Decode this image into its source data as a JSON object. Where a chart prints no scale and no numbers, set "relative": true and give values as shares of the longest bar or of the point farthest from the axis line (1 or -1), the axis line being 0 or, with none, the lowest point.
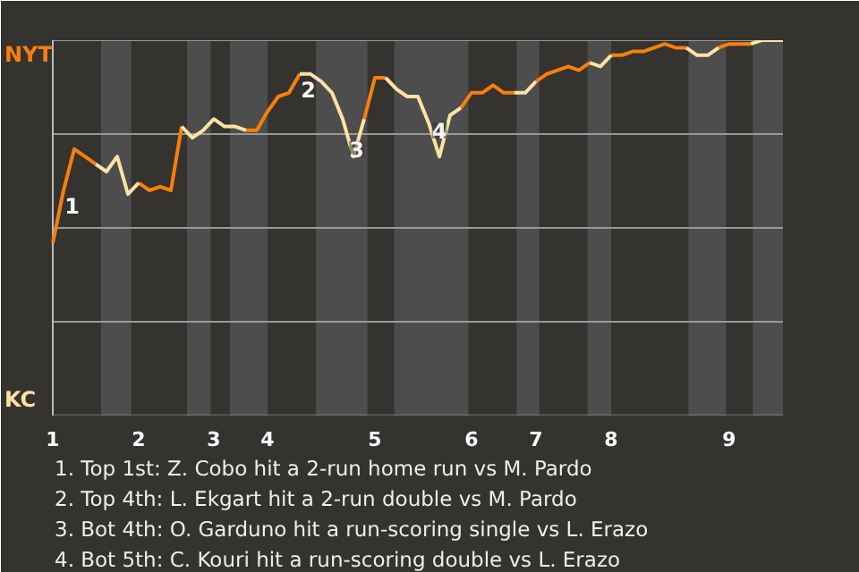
{
  "chart_data": {
    "type": "line",
    "relative": true,
    "categories": [
      "1",
      null,
      null,
      null,
      null,
      null,
      null,
      null,
      "2",
      null,
      null,
      null,
      null,
      null,
      null,
      "3",
      null,
      null,
      null,
      null,
      "4",
      null,
      null,
      null,
      null,
      null,
      null,
      null,
      null,
      null,
      "5",
      null,
      null,
      null,
      null,
      null,
      null,
      null,
      null,
      "6",
      null,
      null,
      null,
      null,
      null,
      "7",
      null,
      null,
      null,
      null,
      null,
      null,
      "8",
      null,
      null,
      null,
      null,
      null,
      null,
      null,
      null,
      null,
      null,
      "9",
      null,
      null,
      null,
      null,
      null
    ],
    "series": [
      {
        "color": "#f97f0a",
        "values": [
          0.46,
          0.6,
          0.71,
          0.69,
          0.67,
          null,
          null,
          null,
          0.62,
          0.6,
          0.61,
          0.6,
          0.77,
          null,
          null,
          null,
          null,
          null,
          0.76,
          0.76,
          0.81,
          0.85,
          0.86,
          0.91,
          null,
          null,
          null,
          null,
          null,
          0.79,
          0.9,
          0.9,
          null,
          null,
          null,
          null,
          null,
          null,
          0.82,
          0.86,
          0.86,
          0.88,
          0.86,
          0.86,
          null,
          0.89,
          0.91,
          0.92,
          0.93,
          0.92,
          0.94,
          null,
          0.96,
          0.96,
          0.97,
          0.97,
          0.98,
          0.99,
          0.98,
          0.98,
          null,
          null,
          0.98,
          0.99,
          0.99,
          0.99,
          null,
          null,
          null
        ]
      },
      {
        "color": "#fde2a4",
        "values": [
          null,
          null,
          null,
          null,
          0.67,
          0.65,
          0.69,
          0.59,
          0.62,
          null,
          null,
          null,
          0.77,
          0.74,
          0.76,
          0.79,
          0.77,
          0.77,
          0.76,
          null,
          null,
          null,
          null,
          0.91,
          0.91,
          0.89,
          0.86,
          0.79,
          0.69,
          0.79,
          null,
          0.9,
          0.87,
          0.85,
          0.85,
          0.78,
          0.69,
          0.8,
          0.82,
          null,
          null,
          null,
          null,
          0.86,
          0.86,
          0.89,
          null,
          null,
          null,
          null,
          0.94,
          0.93,
          0.96,
          null,
          null,
          null,
          null,
          null,
          null,
          0.98,
          0.96,
          0.96,
          0.98,
          null,
          null,
          0.99,
          1.0,
          1.0,
          1.0
        ]
      }
    ],
    "line_style": "solid",
    "ref_lines": [
      {
        "axis": "y",
        "value": 0.25,
        "color": "#999999"
      },
      {
        "axis": "y",
        "value": 0.5,
        "color": "#999999"
      },
      {
        "axis": "y",
        "value": 0.75,
        "color": "#999999"
      },
      {
        "axis": "y",
        "value": 1,
        "color": "#999999"
      }
    ],
    "annotations": [
      "NYT",
      "KC",
      {
        "text": "1",
        "y": 0.56
      },
      {
        "text": "2",
        "y": 0.87
      },
      {
        "text": "3",
        "y": 0.71
      },
      {
        "text": "4",
        "y": 0.76
      },
      "1. Top 1st: Z. Cobo hit a 2-run home run vs M. Pardo",
      "2. Top 4th: L. Ekgart hit a 2-run double vs M. Pardo",
      "3. Bot 4th: O. Garduno hit a run-scoring single vs L. Erazo",
      "4. Bot 5th: C. Kouri hit a run-scoring double vs L. Erazo"
    ]
  }
}
